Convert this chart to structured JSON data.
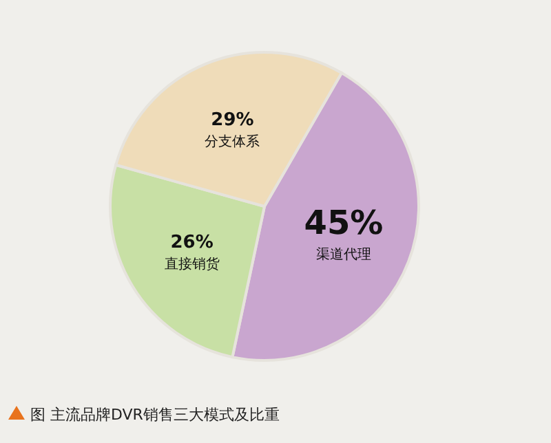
{
  "chart_data": {
    "type": "pie",
    "title": "图  主流品牌DVR销售三大模式及比重",
    "categories": [
      "渠道代理",
      "直接销货",
      "分支体系"
    ],
    "values": [
      45,
      26,
      29
    ],
    "colors": [
      "#c9a6cf",
      "#c8e0a5",
      "#efdcb9"
    ],
    "value_labels": [
      "45%",
      "26%",
      "29%"
    ]
  }
}
